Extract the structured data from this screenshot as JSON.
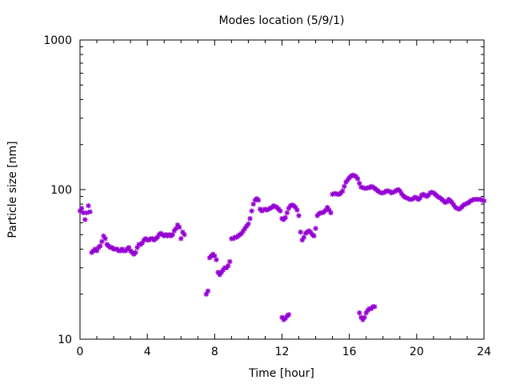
{
  "chart_data": {
    "type": "scatter",
    "title": "Modes location (5/9/1)",
    "xlabel": "Time [hour]",
    "ylabel": "Particle size [nm]",
    "xlim": [
      0,
      24
    ],
    "ylim": [
      10,
      1000
    ],
    "yscale": "log",
    "grid": false,
    "legend": "none",
    "xticks": [
      0,
      4,
      8,
      12,
      16,
      20,
      24
    ],
    "xtick_labels": [
      "0",
      "4",
      "8",
      "12",
      "16",
      "20",
      "24"
    ],
    "yticks": [
      10,
      100,
      1000
    ],
    "ytick_labels": [
      "10",
      "100",
      "1000"
    ],
    "marker_color": "#9400d3",
    "marker": "star",
    "series": [
      {
        "values": [
          [
            0.0,
            72
          ],
          [
            0.1,
            75
          ],
          [
            0.2,
            70
          ],
          [
            0.3,
            63
          ],
          [
            0.4,
            70
          ],
          [
            0.5,
            78
          ],
          [
            0.6,
            71
          ],
          [
            0.7,
            38
          ],
          [
            0.8,
            39
          ],
          [
            0.9,
            40
          ],
          [
            1.0,
            39
          ],
          [
            1.1,
            41
          ],
          [
            1.2,
            42
          ],
          [
            1.3,
            45
          ],
          [
            1.4,
            49
          ],
          [
            1.5,
            47
          ],
          [
            1.6,
            43
          ],
          [
            1.7,
            42
          ],
          [
            1.8,
            41
          ],
          [
            1.9,
            41
          ],
          [
            2.0,
            40
          ],
          [
            2.1,
            40
          ],
          [
            2.2,
            40
          ],
          [
            2.3,
            39
          ],
          [
            2.4,
            39
          ],
          [
            2.5,
            40
          ],
          [
            2.6,
            39
          ],
          [
            2.7,
            39
          ],
          [
            2.8,
            40
          ],
          [
            2.9,
            41
          ],
          [
            3.0,
            39
          ],
          [
            3.1,
            38
          ],
          [
            3.2,
            37
          ],
          [
            3.3,
            38
          ],
          [
            3.4,
            41
          ],
          [
            3.5,
            43
          ],
          [
            3.6,
            43
          ],
          [
            3.7,
            44
          ],
          [
            3.8,
            46
          ],
          [
            3.9,
            47
          ],
          [
            4.0,
            46
          ],
          [
            4.1,
            46
          ],
          [
            4.2,
            47
          ],
          [
            4.3,
            47
          ],
          [
            4.4,
            46
          ],
          [
            4.5,
            47
          ],
          [
            4.6,
            48
          ],
          [
            4.7,
            50
          ],
          [
            4.8,
            51
          ],
          [
            4.9,
            50
          ],
          [
            5.0,
            49
          ],
          [
            5.1,
            50
          ],
          [
            5.2,
            49
          ],
          [
            5.3,
            50
          ],
          [
            5.4,
            49
          ],
          [
            5.5,
            50
          ],
          [
            5.6,
            53
          ],
          [
            5.7,
            55
          ],
          [
            5.8,
            58
          ],
          [
            5.9,
            56
          ],
          [
            6.0,
            47
          ],
          [
            6.1,
            52
          ],
          [
            6.2,
            50
          ],
          [
            7.5,
            20
          ],
          [
            7.6,
            21
          ],
          [
            7.7,
            35
          ],
          [
            7.8,
            36
          ],
          [
            7.9,
            37
          ],
          [
            8.0,
            36
          ],
          [
            8.1,
            34
          ],
          [
            8.2,
            28
          ],
          [
            8.3,
            27
          ],
          [
            8.4,
            28
          ],
          [
            8.5,
            29
          ],
          [
            8.6,
            30
          ],
          [
            8.7,
            30
          ],
          [
            8.8,
            31
          ],
          [
            8.9,
            33
          ],
          [
            9.0,
            47
          ],
          [
            9.1,
            47
          ],
          [
            9.2,
            48
          ],
          [
            9.3,
            48
          ],
          [
            9.4,
            49
          ],
          [
            9.5,
            50
          ],
          [
            9.6,
            51
          ],
          [
            9.7,
            53
          ],
          [
            9.8,
            55
          ],
          [
            9.9,
            57
          ],
          [
            10.0,
            59
          ],
          [
            10.1,
            64
          ],
          [
            10.2,
            72
          ],
          [
            10.3,
            80
          ],
          [
            10.4,
            85
          ],
          [
            10.5,
            87
          ],
          [
            10.6,
            85
          ],
          [
            10.7,
            74
          ],
          [
            10.8,
            72
          ],
          [
            10.9,
            73
          ],
          [
            11.0,
            74
          ],
          [
            11.1,
            73
          ],
          [
            11.2,
            74
          ],
          [
            11.3,
            75
          ],
          [
            11.4,
            76
          ],
          [
            11.5,
            78
          ],
          [
            11.6,
            77
          ],
          [
            11.7,
            76
          ],
          [
            11.8,
            74
          ],
          [
            11.9,
            72
          ],
          [
            12.0,
            64
          ],
          [
            12.1,
            63
          ],
          [
            12.2,
            65
          ],
          [
            12.3,
            70
          ],
          [
            12.4,
            75
          ],
          [
            12.5,
            78
          ],
          [
            12.6,
            79
          ],
          [
            12.7,
            78
          ],
          [
            12.8,
            76
          ],
          [
            12.9,
            73
          ],
          [
            13.0,
            67
          ],
          [
            13.1,
            52
          ],
          [
            13.2,
            46
          ],
          [
            13.3,
            48
          ],
          [
            13.4,
            51
          ],
          [
            13.5,
            52
          ],
          [
            13.6,
            53
          ],
          [
            13.7,
            52
          ],
          [
            13.8,
            50
          ],
          [
            13.9,
            49
          ],
          [
            14.0,
            55
          ],
          [
            14.1,
            67
          ],
          [
            14.2,
            69
          ],
          [
            14.3,
            70
          ],
          [
            14.4,
            70
          ],
          [
            14.5,
            71
          ],
          [
            14.6,
            73
          ],
          [
            14.7,
            76
          ],
          [
            14.8,
            73
          ],
          [
            14.9,
            70
          ],
          [
            15.0,
            93
          ],
          [
            15.1,
            94
          ],
          [
            15.2,
            94
          ],
          [
            15.3,
            93
          ],
          [
            15.4,
            93
          ],
          [
            15.5,
            95
          ],
          [
            15.6,
            98
          ],
          [
            15.7,
            105
          ],
          [
            15.8,
            112
          ],
          [
            15.9,
            116
          ],
          [
            16.0,
            120
          ],
          [
            16.1,
            123
          ],
          [
            16.2,
            125
          ],
          [
            16.3,
            124
          ],
          [
            16.4,
            122
          ],
          [
            16.5,
            118
          ],
          [
            16.6,
            110
          ],
          [
            16.7,
            104
          ],
          [
            16.8,
            103
          ],
          [
            16.9,
            102
          ],
          [
            17.0,
            102
          ],
          [
            17.1,
            103
          ],
          [
            17.2,
            103
          ],
          [
            17.3,
            105
          ],
          [
            17.4,
            104
          ],
          [
            17.5,
            102
          ],
          [
            17.6,
            100
          ],
          [
            17.7,
            98
          ],
          [
            17.8,
            96
          ],
          [
            17.9,
            95
          ],
          [
            18.0,
            95
          ],
          [
            18.1,
            96
          ],
          [
            18.2,
            98
          ],
          [
            18.3,
            98
          ],
          [
            18.4,
            97
          ],
          [
            18.5,
            95
          ],
          [
            18.6,
            96
          ],
          [
            18.7,
            97
          ],
          [
            18.8,
            99
          ],
          [
            18.9,
            100
          ],
          [
            19.0,
            98
          ],
          [
            19.1,
            94
          ],
          [
            19.2,
            91
          ],
          [
            19.3,
            89
          ],
          [
            19.4,
            88
          ],
          [
            19.5,
            87
          ],
          [
            19.6,
            86
          ],
          [
            19.7,
            86
          ],
          [
            19.8,
            87
          ],
          [
            19.9,
            89
          ],
          [
            20.0,
            88
          ],
          [
            20.1,
            86
          ],
          [
            20.2,
            88
          ],
          [
            20.3,
            92
          ],
          [
            20.4,
            93
          ],
          [
            20.5,
            91
          ],
          [
            20.6,
            90
          ],
          [
            20.7,
            92
          ],
          [
            20.8,
            95
          ],
          [
            20.9,
            96
          ],
          [
            21.0,
            95
          ],
          [
            21.1,
            93
          ],
          [
            21.2,
            91
          ],
          [
            21.3,
            89
          ],
          [
            21.4,
            88
          ],
          [
            21.5,
            86
          ],
          [
            21.6,
            84
          ],
          [
            21.7,
            82
          ],
          [
            21.8,
            83
          ],
          [
            21.9,
            86
          ],
          [
            22.0,
            84
          ],
          [
            22.1,
            82
          ],
          [
            22.2,
            79
          ],
          [
            22.3,
            76
          ],
          [
            22.4,
            75
          ],
          [
            22.5,
            74
          ],
          [
            22.6,
            75
          ],
          [
            22.7,
            77
          ],
          [
            22.8,
            79
          ],
          [
            22.9,
            80
          ],
          [
            23.0,
            81
          ],
          [
            23.1,
            82
          ],
          [
            23.2,
            84
          ],
          [
            23.3,
            85
          ],
          [
            23.4,
            86
          ],
          [
            23.5,
            86
          ],
          [
            23.6,
            86
          ],
          [
            23.7,
            86
          ],
          [
            23.8,
            86
          ],
          [
            23.9,
            85
          ],
          [
            24.0,
            84
          ],
          [
            12.0,
            14
          ],
          [
            12.1,
            13.5
          ],
          [
            12.2,
            13.8
          ],
          [
            12.3,
            14.3
          ],
          [
            12.4,
            14.6
          ],
          [
            16.6,
            15
          ],
          [
            16.7,
            14
          ],
          [
            16.8,
            13.5
          ],
          [
            16.9,
            14
          ],
          [
            17.0,
            15
          ],
          [
            17.1,
            15.6
          ],
          [
            17.2,
            16
          ],
          [
            17.3,
            16
          ],
          [
            17.4,
            16.5
          ],
          [
            17.5,
            16.5
          ]
        ]
      }
    ]
  }
}
